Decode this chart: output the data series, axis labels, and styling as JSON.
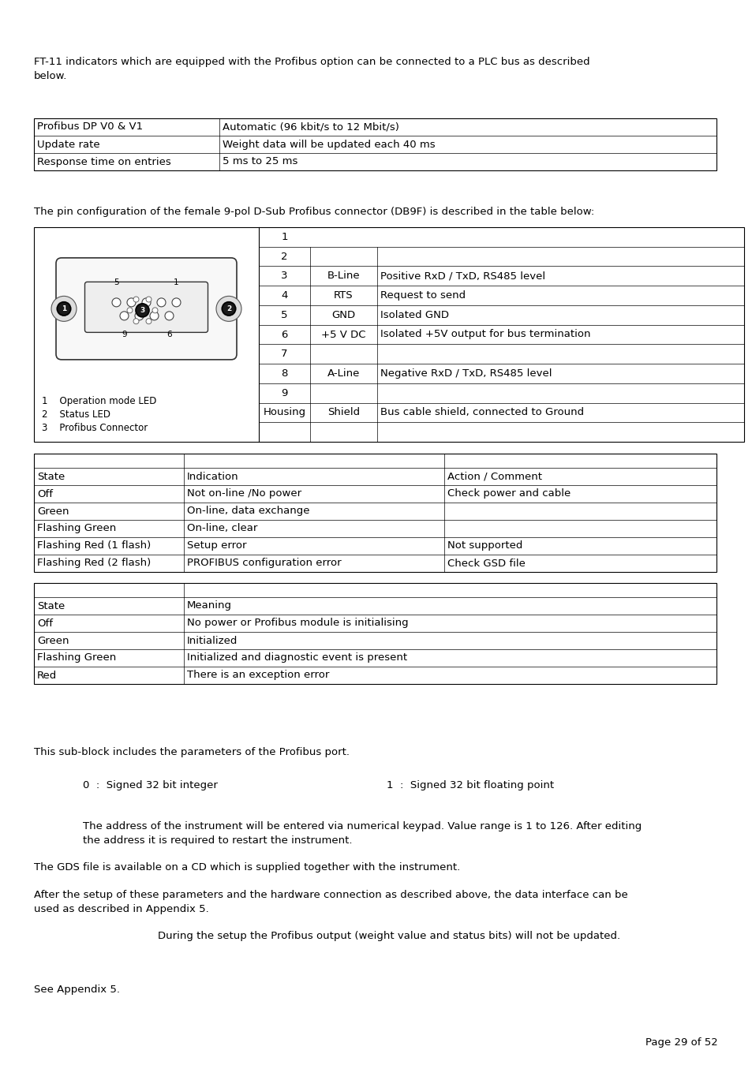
{
  "page_bg": "#ffffff",
  "text_color": "#000000",
  "intro_line1": "FT-11 indicators which are equipped with the Profibus option can be connected to a PLC bus as described",
  "intro_line2": "below.",
  "table1_rows": [
    [
      "Profibus DP V0 & V1",
      "Automatic (96 kbit/s to 12 Mbit/s)"
    ],
    [
      "Update rate",
      "Weight data will be updated each 40 ms"
    ],
    [
      "Response time on entries",
      "5 ms to 25 ms"
    ]
  ],
  "pin_intro": "The pin configuration of the female 9-pol D-Sub Profibus connector (DB9F) is described in the table below:",
  "pin_rows": [
    [
      "1",
      "",
      ""
    ],
    [
      "2",
      "",
      ""
    ],
    [
      "3",
      "B-Line",
      "Positive RxD / TxD, RS485 level"
    ],
    [
      "4",
      "RTS",
      "Request to send"
    ],
    [
      "5",
      "GND",
      "Isolated GND"
    ],
    [
      "6",
      "+5 V DC",
      "Isolated +5V output for bus termination"
    ],
    [
      "7",
      "",
      ""
    ],
    [
      "8",
      "A-Line",
      "Negative RxD / TxD, RS485 level"
    ],
    [
      "9",
      "",
      ""
    ],
    [
      "Housing",
      "Shield",
      "Bus cable shield, connected to Ground"
    ]
  ],
  "legend": [
    [
      "1",
      "Operation mode LED"
    ],
    [
      "2",
      "Status LED"
    ],
    [
      "3",
      "Profibus Connector"
    ]
  ],
  "table3_header": [
    "State",
    "Indication",
    "Action / Comment"
  ],
  "table3_rows": [
    [
      "Off",
      "Not on-line /No power",
      "Check power and cable"
    ],
    [
      "Green",
      "On-line, data exchange",
      ""
    ],
    [
      "Flashing Green",
      "On-line, clear",
      ""
    ],
    [
      "Flashing Red (1 flash)",
      "Setup error",
      "Not supported"
    ],
    [
      "Flashing Red (2 flash)",
      "PROFIBUS configuration error",
      "Check GSD file"
    ]
  ],
  "table4_header": [
    "State",
    "Meaning"
  ],
  "table4_rows": [
    [
      "Off",
      "No power or Profibus module is initialising"
    ],
    [
      "Green",
      "Initialized"
    ],
    [
      "Flashing Green",
      "Initialized and diagnostic event is present"
    ],
    [
      "Red",
      "There is an exception error"
    ]
  ],
  "subblock_text": "This sub-block includes the parameters of the Profibus port.",
  "df_left": "0  :  Signed 32 bit integer",
  "df_right": "1  :  Signed 32 bit floating point",
  "addr_line1": "The address of the instrument will be entered via numerical keypad. Value range is 1 to 126. After editing",
  "addr_line2": "the address it is required to restart the instrument.",
  "gds_text": "The GDS file is available on a CD which is supplied together with the instrument.",
  "after_line1": "After the setup of these parameters and the hardware connection as described above, the data interface can be",
  "after_line2": "used as described in Appendix 5.",
  "note_text": "During the setup the Profibus output (weight value and status bits) will not be updated.",
  "see_text": "See Appendix 5.",
  "page_num": "Page 29 of 52"
}
